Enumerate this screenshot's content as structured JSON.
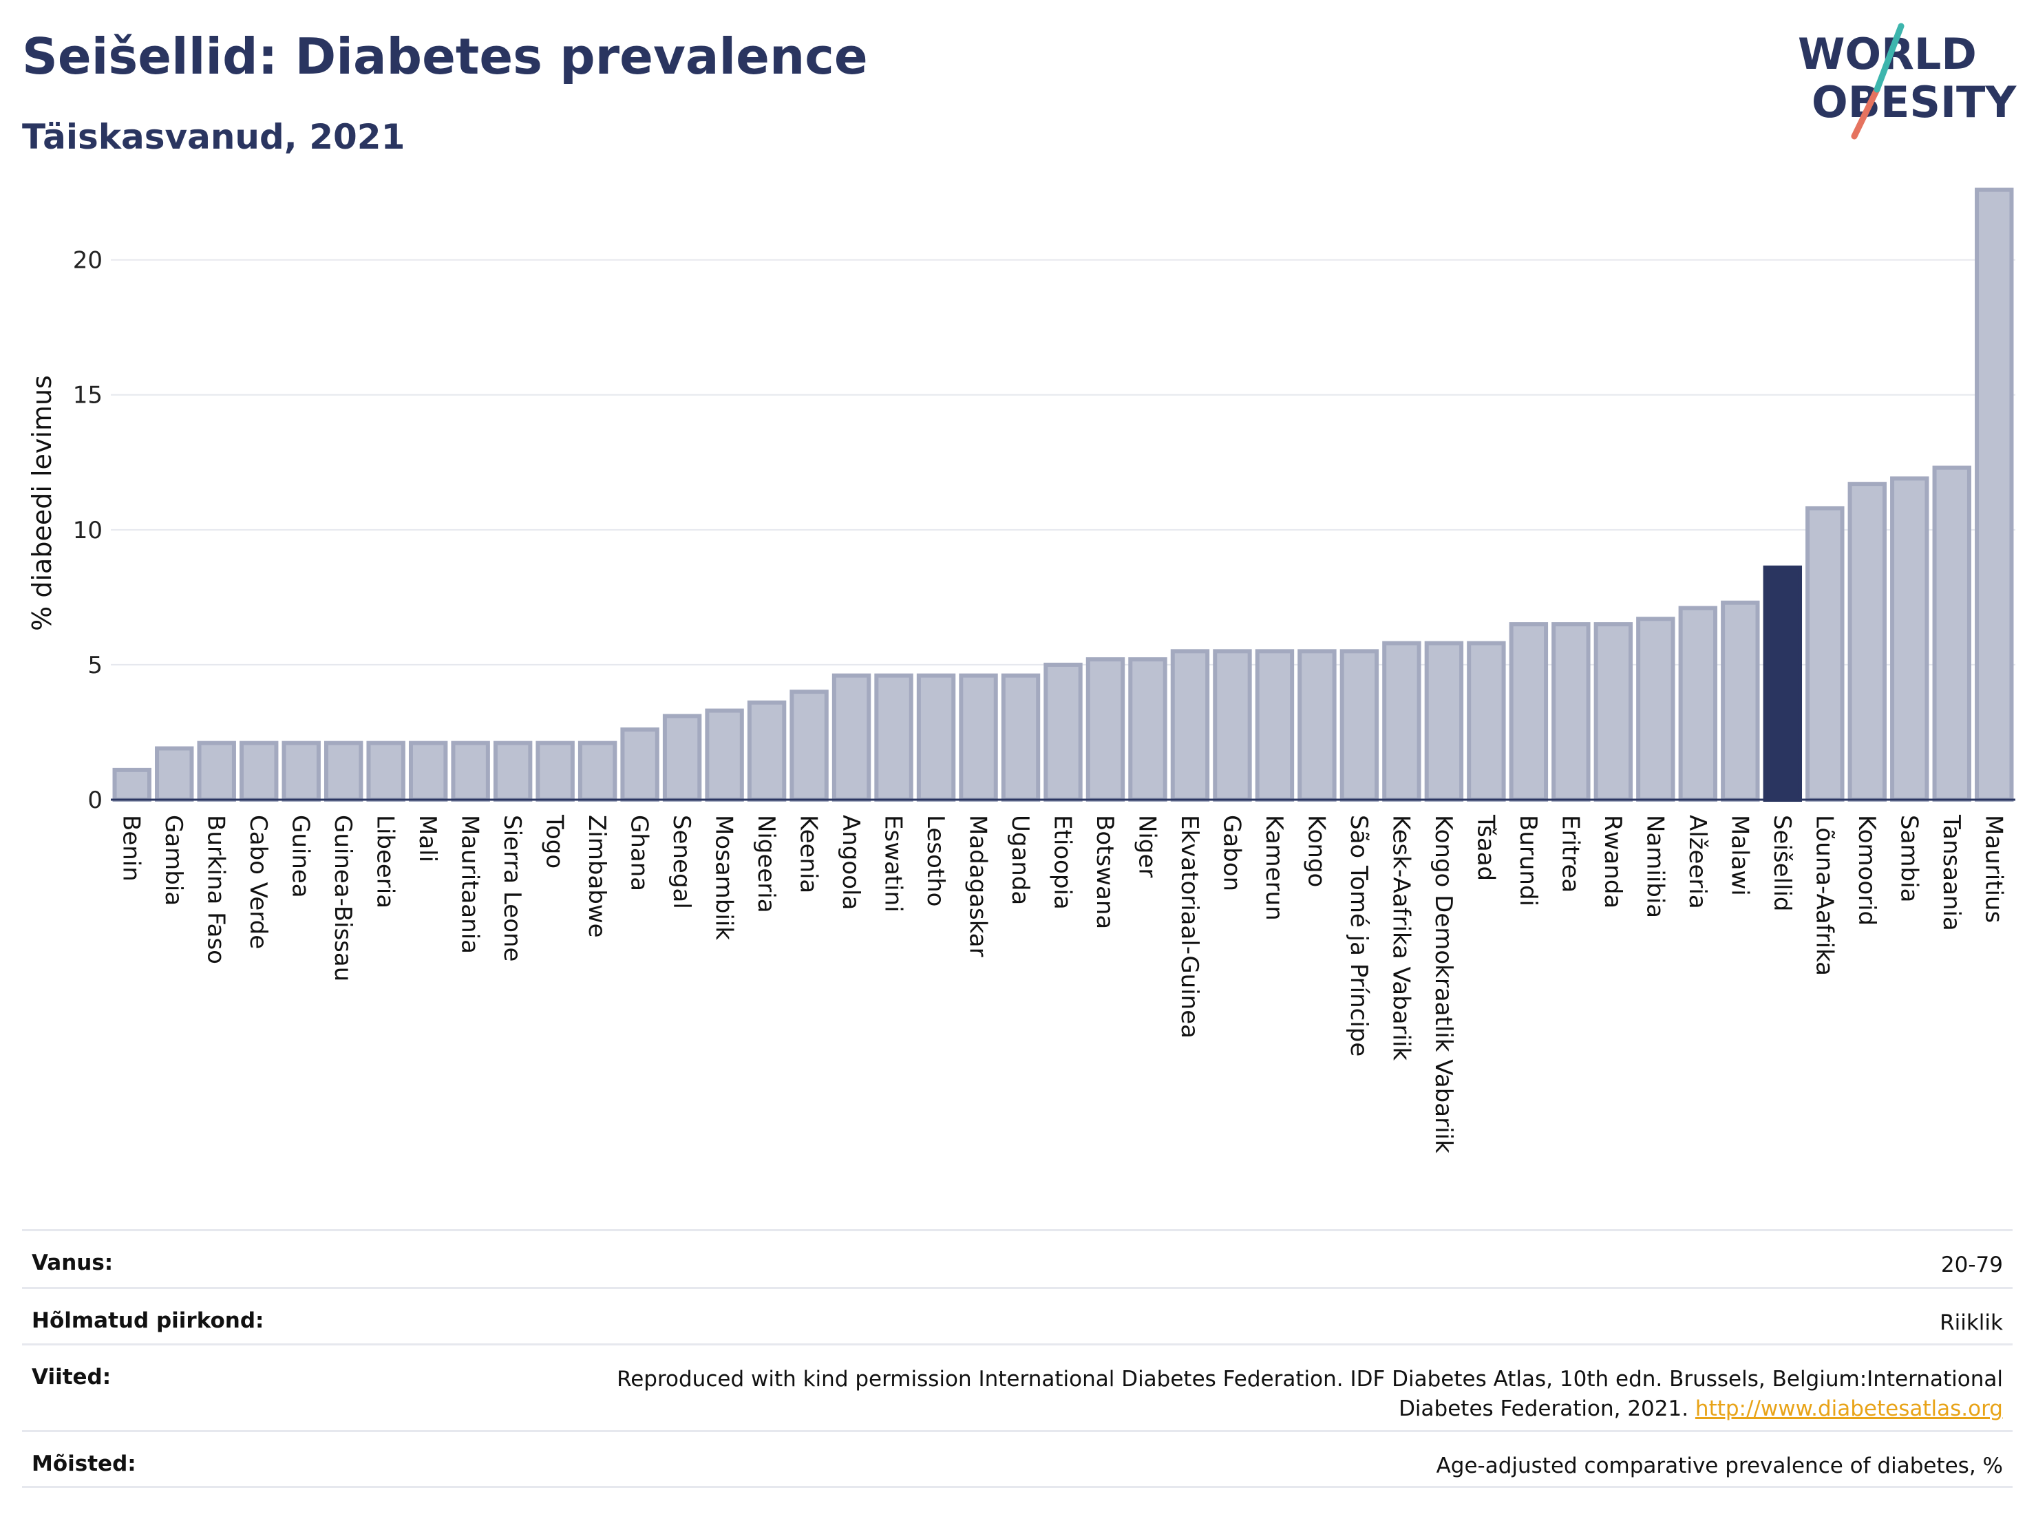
{
  "header": {
    "title": "Seišellid: Diabetes prevalence",
    "subtitle": "Täiskasvanud, 2021",
    "logo_line1": "WORLD",
    "logo_line2": "OBESITY"
  },
  "colors": {
    "title": "#2a3560",
    "bar_fill": "#bcc1d1",
    "bar_stroke": "#a3a9bf",
    "highlight": "#2a3560",
    "link": "#e8a317"
  },
  "chart_data": {
    "type": "bar",
    "ylabel": "% diabeedi levimus",
    "ylim": [
      0,
      23
    ],
    "yticks": [
      0,
      5,
      10,
      15,
      20
    ],
    "grid": true,
    "highlight": "Seišellid",
    "categories": [
      "Benin",
      "Gambia",
      "Burkina Faso",
      "Cabo Verde",
      "Guinea",
      "Guinea-Bissau",
      "Libeeria",
      "Mali",
      "Mauritaania",
      "Sierra Leone",
      "Togo",
      "Zimbabwe",
      "Ghana",
      "Senegal",
      "Mosambiik",
      "Nigeeria",
      "Keenia",
      "Angoola",
      "Eswatini",
      "Lesotho",
      "Madagaskar",
      "Uganda",
      "Etioopia",
      "Botswana",
      "Niger",
      "Ekvatoriaal-Guinea",
      "Gabon",
      "Kamerun",
      "Kongo",
      "São Tomé ja Príncipe",
      "Kesk-Aafrika Vabariik",
      "Kongo Demokraatlik Vabariik",
      "Tšaad",
      "Burundi",
      "Eritrea",
      "Rwanda",
      "Namiibia",
      "Alžeeria",
      "Malawi",
      "Seišellid",
      "Lõuna-Aafrika",
      "Komoorid",
      "Sambia",
      "Tansaania",
      "Mauritius"
    ],
    "values": [
      1.1,
      1.9,
      2.1,
      2.1,
      2.1,
      2.1,
      2.1,
      2.1,
      2.1,
      2.1,
      2.1,
      2.1,
      2.6,
      3.1,
      3.3,
      3.6,
      4.0,
      4.6,
      4.6,
      4.6,
      4.6,
      4.6,
      5.0,
      5.2,
      5.2,
      5.5,
      5.5,
      5.5,
      5.5,
      5.5,
      5.8,
      5.8,
      5.8,
      6.5,
      6.5,
      6.5,
      6.7,
      7.1,
      7.3,
      8.6,
      10.8,
      11.7,
      11.9,
      12.3,
      22.6
    ]
  },
  "meta": {
    "rows": [
      {
        "label": "Vanus:",
        "value": "20-79"
      },
      {
        "label": "Hõlmatud piirkond:",
        "value": "Riiklik"
      },
      {
        "label": "Viited:",
        "value": "Reproduced with kind permission International Diabetes Federation.  IDF Diabetes Atlas, 10th edn. Brussels, Belgium:International Diabetes Federation, 2021.",
        "link": "http://www.diabetesatlas.org"
      },
      {
        "label": "Mõisted:",
        "value": "Age-adjusted comparative prevalence of diabetes, %"
      }
    ]
  }
}
